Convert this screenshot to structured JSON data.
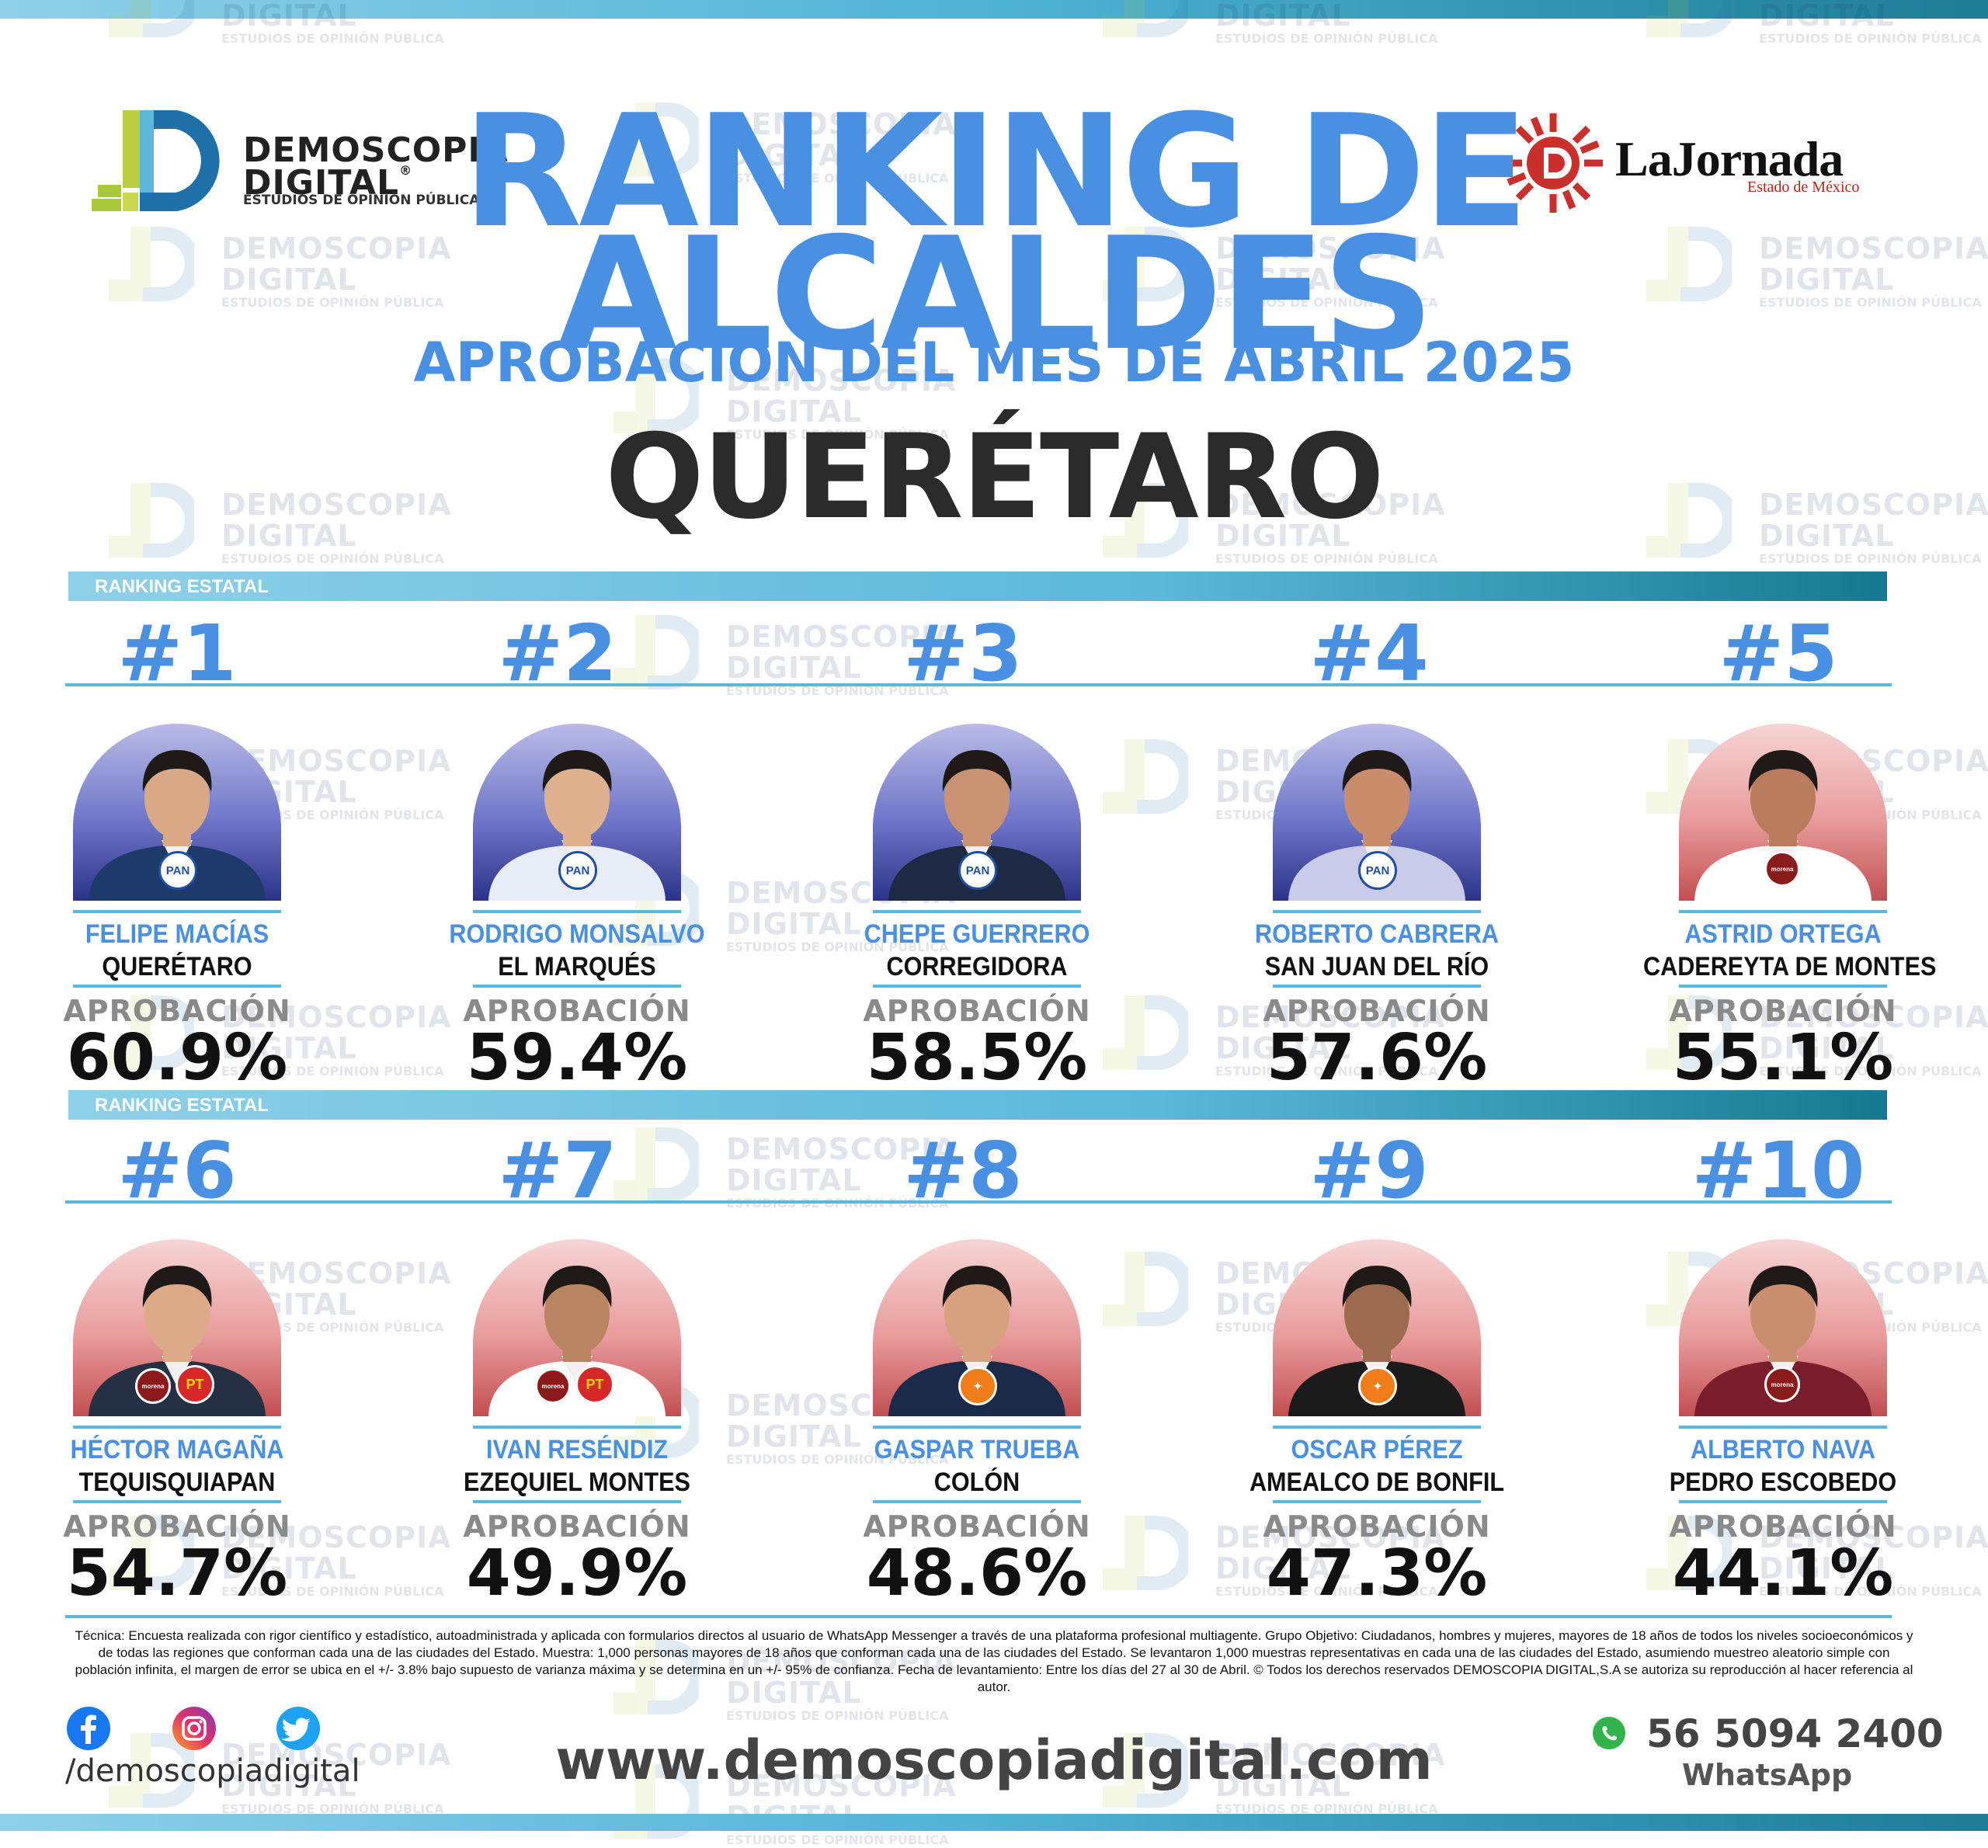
{
  "header": {
    "left_logo": {
      "line1": "DEMOSCOPIA",
      "line2": "DIGITAL",
      "registered": "®",
      "tagline": "ESTUDIOS DE OPINIÓN PÚBLICA"
    },
    "right_logo": {
      "name": "LaJornada",
      "sub": "Estado de México"
    },
    "title_line1": "RANKING DE",
    "title_line2": "ALCALDES",
    "subtitle": "APROBACIÓN DEL MES DE ABRIL 2025",
    "state": "QUERÉTARO"
  },
  "watermark": {
    "line1": "DEMOSCOPIA",
    "line2": "DIGITAL",
    "line3": "ESTUDIOS DE OPINIÓN PÚBLICA"
  },
  "section_label": "RANKING ESTATAL",
  "approval_label": "APROBACIÓN",
  "colors": {
    "accent_blue": "#4a90e2",
    "band_teal": "#157a8f",
    "jornada_red": "#b3261e",
    "pan_blue": "#1f4fa3",
    "morena_red": "#8b1a1a",
    "pt_red": "#d62828",
    "mc_orange": "#f07d1a"
  },
  "mayors": [
    {
      "rank": "#1",
      "name": "FELIPE MACÍAS",
      "municipality": "QUERÉTARO",
      "approval": "60.9%",
      "approval_value": 60.9,
      "party_badges": [
        "PAN"
      ],
      "bg": "blue"
    },
    {
      "rank": "#2",
      "name": "RODRIGO MONSALVO",
      "municipality": "EL MARQUÉS",
      "approval": "59.4%",
      "approval_value": 59.4,
      "party_badges": [
        "PAN"
      ],
      "bg": "blue"
    },
    {
      "rank": "#3",
      "name": "CHEPE GUERRERO",
      "municipality": "CORREGIDORA",
      "approval": "58.5%",
      "approval_value": 58.5,
      "party_badges": [
        "PAN"
      ],
      "bg": "blue"
    },
    {
      "rank": "#4",
      "name": "ROBERTO CABRERA",
      "municipality": "SAN JUAN DEL RÍO",
      "approval": "57.6%",
      "approval_value": 57.6,
      "party_badges": [
        "PAN"
      ],
      "bg": "blue"
    },
    {
      "rank": "#5",
      "name": "ASTRID ORTEGA",
      "municipality": "CADEREYTA DE MONTES",
      "approval": "55.1%",
      "approval_value": 55.1,
      "party_badges": [
        "morena"
      ],
      "bg": "red"
    },
    {
      "rank": "#6",
      "name": "HÉCTOR MAGAÑA",
      "municipality": "TEQUISQUIAPAN",
      "approval": "54.7%",
      "approval_value": 54.7,
      "party_badges": [
        "morena",
        "PT"
      ],
      "bg": "red"
    },
    {
      "rank": "#7",
      "name": "IVAN RESÉNDIZ",
      "municipality": "EZEQUIEL MONTES",
      "approval": "49.9%",
      "approval_value": 49.9,
      "party_badges": [
        "morena",
        "PT"
      ],
      "bg": "red"
    },
    {
      "rank": "#8",
      "name": "GASPAR TRUEBA",
      "municipality": "COLÓN",
      "approval": "48.6%",
      "approval_value": 48.6,
      "party_badges": [
        "MC"
      ],
      "bg": "red"
    },
    {
      "rank": "#9",
      "name": "OSCAR PÉREZ",
      "municipality": "AMEALCO DE BONFIL",
      "approval": "47.3%",
      "approval_value": 47.3,
      "party_badges": [
        "MC"
      ],
      "bg": "red"
    },
    {
      "rank": "#10",
      "name": "ALBERTO NAVA",
      "municipality": "PEDRO ESCOBEDO",
      "approval": "44.1%",
      "approval_value": 44.1,
      "party_badges": [
        "morena"
      ],
      "bg": "red"
    }
  ],
  "footer": {
    "methodology": "Técnica: Encuesta realizada con rigor científico y estadístico, autoadministrada y aplicada con formularios directos al usuario de WhatsApp Messenger a través de una plataforma profesional multiagente. Grupo Objetivo: Ciudadanos, hombres y mujeres, mayores de 18 años de todos los niveles socioeconómicos y de todas las regiones que conforman cada una de las ciudades del Estado. Muestra: 1,000 personas mayores de 18 años que conforman cada una de las ciudades del Estado. Se levantaron 1,000 muestras representativas en cada una de las ciudades del Estado, asumiendo muestreo aleatorio simple con población infinita, el margen de error se ubica en el +/- 3.8% bajo supuesto de varianza máxima y se determina en un +/- 95% de confianza. Fecha de levantamiento: Entre los días del 27 al 30 de Abril. © Todos los derechos reservados DEMOSCOPIA DIGITAL,S.A se autoriza su reproducción al hacer referencia al autor.",
    "social_icons": [
      "facebook-icon",
      "instagram-icon",
      "twitter-icon"
    ],
    "handle": "/demoscopiadigital",
    "website": "www.demoscopiadigital.com",
    "phone": "56 5094 2400",
    "whatsapp_label": "WhatsApp"
  }
}
